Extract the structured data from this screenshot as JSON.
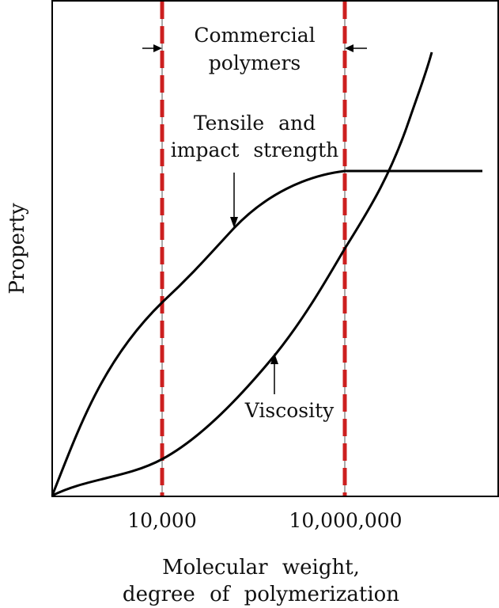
{
  "chart_data": {
    "type": "line",
    "ylabel": "Property",
    "xlabel_lines": [
      "Molecular weight,",
      "degree of polymerization"
    ],
    "x_ticks": [
      "10,000",
      "10,000,000"
    ],
    "region": {
      "label_lines": [
        "Commercial",
        "polymers"
      ],
      "bounds": [
        "10,000",
        "10,000,000"
      ],
      "line_color": "#cc1f1f"
    },
    "series": [
      {
        "label_lines": [
          "Tensile and",
          "impact strength"
        ]
      },
      {
        "label_lines": [
          "Viscosity"
        ]
      }
    ]
  }
}
